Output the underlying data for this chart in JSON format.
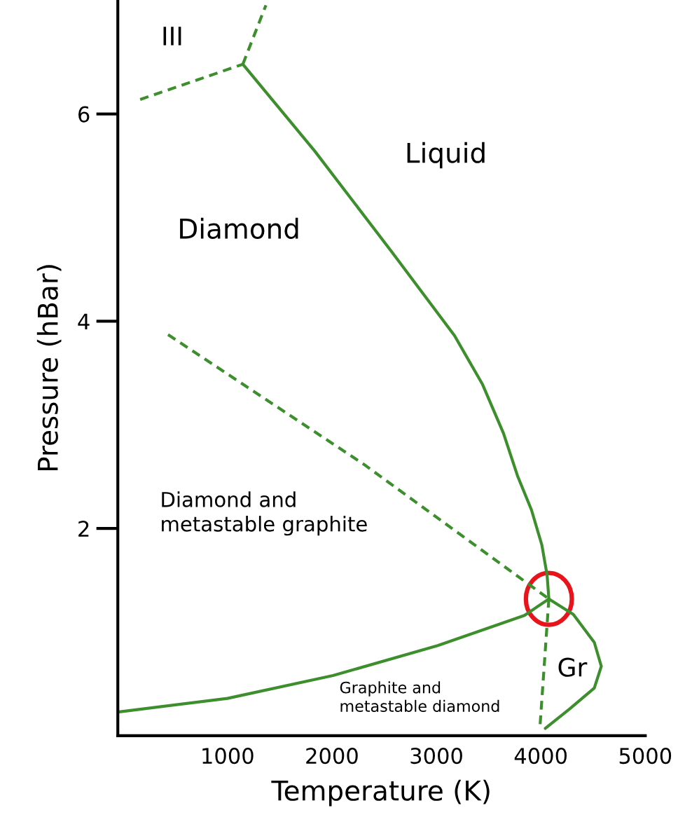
{
  "chart_data": {
    "type": "line",
    "xlabel": "Temperature (K)",
    "ylabel": "Pressure (hBar)",
    "xlim": [
      -50,
      5000
    ],
    "ylim": [
      0,
      7.1
    ],
    "xticks": [
      1000,
      2000,
      3000,
      4000,
      5000
    ],
    "yticks": [
      2,
      4,
      6
    ],
    "grid": false,
    "legend": false,
    "marker": "none",
    "series": [
      {
        "color": "#3c8f2c",
        "line_style": "solid",
        "x": [
          1147,
          1837,
          2572,
          3174,
          3442,
          3642,
          3776,
          3910,
          4010,
          4060,
          4077
        ],
        "values": [
          6.48,
          5.64,
          4.67,
          3.86,
          3.39,
          2.92,
          2.51,
          2.18,
          1.84,
          1.55,
          1.32
        ]
      },
      {
        "color": "#3c8f2c",
        "line_style": "solid",
        "x": [
          -37,
          1000,
          2010,
          3013,
          3843,
          4077
        ],
        "values": [
          0.23,
          0.36,
          0.58,
          0.87,
          1.16,
          1.32
        ]
      },
      {
        "color": "#3c8f2c",
        "line_style": "solid",
        "x": [
          4077,
          4311,
          4512,
          4579,
          4512,
          4278,
          4043
        ],
        "values": [
          1.32,
          1.17,
          0.9,
          0.67,
          0.46,
          0.26,
          0.07
        ]
      },
      {
        "color": "#3c8f2c",
        "line_style": "dashed",
        "x": [
          431,
          2304,
          4077
        ],
        "values": [
          3.87,
          2.62,
          1.32
        ]
      },
      {
        "color": "#3c8f2c",
        "line_style": "dashed",
        "x": [
          4077,
          3990
        ],
        "values": [
          1.32,
          0.06
        ]
      },
      {
        "color": "#3c8f2c",
        "line_style": "dashed",
        "x": [
          164,
          1147
        ],
        "values": [
          6.14,
          6.48
        ]
      },
      {
        "color": "#3c8f2c",
        "line_style": "dashed",
        "x": [
          1147,
          1368
        ],
        "values": [
          6.48,
          7.05
        ]
      }
    ],
    "annotations": [
      "III",
      "Liquid",
      "Diamond",
      "Diamond and\nmetastable graphite",
      "Gr",
      "Graphite and\nmetastable diamond"
    ]
  }
}
